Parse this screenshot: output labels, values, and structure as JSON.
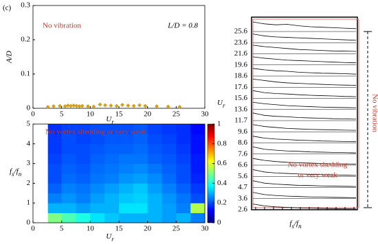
{
  "panel_label": "(c)",
  "chart_data": [
    {
      "type": "scatter",
      "annotation": "No vibration",
      "annotation_right": "L/D = 0.8",
      "xlabel": [
        {
          "text": "U",
          "sub": false
        },
        {
          "text": "r",
          "sub": true
        }
      ],
      "ylabel": "A/D",
      "x": [
        2.6,
        3.6,
        4.7,
        5.6,
        6.1,
        6.6,
        7.1,
        7.6,
        8.1,
        8.6,
        9.6,
        10.6,
        11.7,
        12.6,
        13.6,
        14.6,
        15.6,
        16.6,
        17.6,
        18.6,
        19.6,
        21.6,
        23.6,
        25.6
      ],
      "values": [
        0.004,
        0.006,
        0.007,
        0.006,
        0.008,
        0.007,
        0.008,
        0.007,
        0.006,
        0.007,
        0.006,
        0.005,
        0.011,
        0.009,
        0.008,
        0.007,
        0.01,
        0.008,
        0.007,
        0.009,
        0.007,
        0.006,
        0.005,
        0.004
      ],
      "color": "#d4a017",
      "xlim": [
        0,
        30
      ],
      "ylim": [
        0,
        0.3
      ],
      "xticks": [
        0,
        5,
        10,
        15,
        20,
        25,
        30
      ],
      "yticks": [
        0,
        0.1,
        0.2,
        0.3
      ]
    },
    {
      "type": "heatmap",
      "annotation": "No vortex shedding or very weak",
      "xlabel": [
        {
          "text": "U",
          "sub": false
        },
        {
          "text": "r",
          "sub": true
        }
      ],
      "ylabel": [
        {
          "text": "f",
          "sub": false
        },
        {
          "text": "s",
          "sub": true
        },
        {
          "text": "/f",
          "sub": false
        },
        {
          "text": "n",
          "sub": true
        }
      ],
      "xbins": [
        2.6,
        5,
        7.5,
        10,
        12.5,
        15,
        17.5,
        20,
        22.5,
        25,
        27.5,
        30
      ],
      "ybins": [
        0,
        0.5,
        1,
        1.5,
        2,
        2.5,
        3,
        3.5,
        4,
        4.5,
        5
      ],
      "z": [
        [
          0.5,
          0.45,
          0.4,
          0.35,
          0.32,
          0.3,
          0.3,
          0.3,
          0.28,
          0.3,
          0.25
        ],
        [
          0.3,
          0.3,
          0.28,
          0.3,
          0.3,
          0.35,
          0.35,
          0.3,
          0.28,
          0.25,
          0.55
        ],
        [
          0.25,
          0.27,
          0.25,
          0.28,
          0.3,
          0.32,
          0.33,
          0.3,
          0.27,
          0.24,
          0.2
        ],
        [
          0.22,
          0.25,
          0.24,
          0.26,
          0.28,
          0.3,
          0.32,
          0.28,
          0.25,
          0.22,
          0.18
        ],
        [
          0.2,
          0.23,
          0.22,
          0.24,
          0.25,
          0.27,
          0.28,
          0.26,
          0.23,
          0.2,
          0.16
        ],
        [
          0.2,
          0.22,
          0.21,
          0.23,
          0.24,
          0.25,
          0.26,
          0.24,
          0.22,
          0.2,
          0.15
        ],
        [
          0.19,
          0.21,
          0.2,
          0.22,
          0.23,
          0.24,
          0.24,
          0.22,
          0.21,
          0.19,
          0.15
        ],
        [
          0.18,
          0.2,
          0.2,
          0.21,
          0.22,
          0.22,
          0.23,
          0.21,
          0.2,
          0.18,
          0.14
        ],
        [
          0.18,
          0.2,
          0.19,
          0.2,
          0.21,
          0.21,
          0.22,
          0.2,
          0.19,
          0.17,
          0.14
        ],
        [
          0.17,
          0.19,
          0.19,
          0.2,
          0.2,
          0.2,
          0.21,
          0.19,
          0.18,
          0.17,
          0.13
        ]
      ],
      "colormap": "jet",
      "xlim": [
        0,
        30
      ],
      "ylim": [
        0,
        5
      ],
      "xticks": [
        0,
        5,
        10,
        15,
        20,
        25,
        30
      ],
      "yticks": [
        0,
        1,
        2,
        3,
        4,
        5
      ],
      "clim": [
        0,
        1
      ],
      "cticks": [
        0,
        0.2,
        0.4,
        0.6,
        0.8,
        1
      ]
    },
    {
      "type": "spectra",
      "annotation": "No vibration",
      "annotation_lines": [
        "No vortex shedding",
        "or very weak"
      ],
      "xlabel": [
        {
          "text": "f",
          "sub": false
        },
        {
          "text": "s",
          "sub": true
        },
        {
          "text": "/f",
          "sub": false
        },
        {
          "text": "n",
          "sub": true
        }
      ],
      "ylabel": [
        {
          "text": "U",
          "sub": false
        },
        {
          "text": "r",
          "sub": true
        }
      ],
      "categories": [
        "25.6",
        "23.6",
        "21.6",
        "19.6",
        "18.6",
        "17.6",
        "15.6",
        "13.6",
        "11.7",
        "9.6",
        "8.6",
        "7.6",
        "6.6",
        "5.6",
        "4.7",
        "3.6",
        "2.6"
      ],
      "series": [
        [
          1.0,
          0.8,
          0.7,
          0.75,
          0.6,
          0.5,
          0.45,
          0.4,
          0.35,
          0.3
        ],
        [
          0.9,
          0.7,
          0.6,
          0.55,
          0.5,
          0.45,
          0.4,
          0.35,
          0.3,
          0.25
        ],
        [
          0.9,
          0.75,
          0.65,
          0.55,
          0.45,
          0.4,
          0.35,
          0.3,
          0.28,
          0.25
        ],
        [
          0.85,
          0.7,
          0.6,
          0.5,
          0.45,
          0.4,
          0.35,
          0.3,
          0.25,
          0.22
        ],
        [
          0.8,
          0.65,
          0.55,
          0.5,
          0.4,
          0.35,
          0.3,
          0.28,
          0.25,
          0.2
        ],
        [
          0.85,
          0.7,
          0.55,
          0.45,
          0.4,
          0.35,
          0.3,
          0.25,
          0.22,
          0.2
        ],
        [
          0.8,
          0.6,
          0.5,
          0.45,
          0.38,
          0.32,
          0.28,
          0.25,
          0.2,
          0.18
        ],
        [
          0.75,
          0.6,
          0.5,
          0.4,
          0.35,
          0.3,
          0.25,
          0.22,
          0.2,
          0.18
        ],
        [
          0.8,
          0.55,
          0.45,
          0.4,
          0.32,
          0.28,
          0.25,
          0.2,
          0.18,
          0.15
        ],
        [
          0.75,
          0.55,
          0.45,
          0.35,
          0.3,
          0.25,
          0.22,
          0.2,
          0.17,
          0.15
        ],
        [
          0.7,
          0.5,
          0.4,
          0.35,
          0.28,
          0.25,
          0.2,
          0.18,
          0.15,
          0.13
        ],
        [
          0.75,
          0.5,
          0.4,
          0.32,
          0.28,
          0.22,
          0.2,
          0.17,
          0.15,
          0.12
        ],
        [
          0.7,
          0.5,
          0.38,
          0.3,
          0.25,
          0.22,
          0.18,
          0.15,
          0.13,
          0.12
        ],
        [
          0.7,
          0.45,
          0.35,
          0.3,
          0.25,
          0.2,
          0.18,
          0.15,
          0.12,
          0.1
        ],
        [
          0.7,
          0.45,
          0.35,
          0.28,
          0.22,
          0.2,
          0.16,
          0.14,
          0.12,
          0.1
        ],
        [
          0.65,
          0.42,
          0.32,
          0.26,
          0.22,
          0.18,
          0.15,
          0.13,
          0.11,
          0.1
        ],
        [
          0.6,
          0.4,
          0.3,
          0.25,
          0.2,
          0.17,
          0.14,
          0.12,
          0.1,
          0.09
        ]
      ],
      "color": "#000000"
    }
  ]
}
